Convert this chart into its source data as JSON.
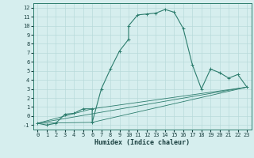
{
  "xlabel": "Humidex (Indice chaleur)",
  "ylabel": "",
  "bg_color": "#d6eeee",
  "line_color": "#2d7d6e",
  "grid_color": "#b8dada",
  "xlim": [
    -0.5,
    23.5
  ],
  "ylim": [
    -1.5,
    12.5
  ],
  "xticks": [
    0,
    1,
    2,
    3,
    4,
    5,
    6,
    7,
    8,
    9,
    10,
    11,
    12,
    13,
    14,
    15,
    16,
    17,
    18,
    19,
    20,
    21,
    22,
    23
  ],
  "yticks": [
    -1,
    0,
    1,
    2,
    3,
    4,
    5,
    6,
    7,
    8,
    9,
    10,
    11,
    12
  ],
  "series": [
    [
      0,
      -0.8
    ],
    [
      1,
      -1.0
    ],
    [
      2,
      -0.8
    ],
    [
      3,
      0.2
    ],
    [
      4,
      0.3
    ],
    [
      5,
      0.8
    ],
    [
      6,
      0.8
    ],
    [
      6,
      -0.7
    ],
    [
      7,
      3.0
    ],
    [
      8,
      5.2
    ],
    [
      9,
      7.2
    ],
    [
      10,
      8.5
    ],
    [
      10,
      10.0
    ],
    [
      11,
      11.2
    ],
    [
      12,
      11.3
    ],
    [
      13,
      11.4
    ],
    [
      14,
      11.8
    ],
    [
      15,
      11.5
    ],
    [
      16,
      9.7
    ],
    [
      17,
      5.7
    ],
    [
      18,
      3.0
    ],
    [
      19,
      5.2
    ],
    [
      20,
      4.8
    ],
    [
      21,
      4.2
    ],
    [
      22,
      4.6
    ],
    [
      23,
      3.2
    ]
  ],
  "series2": [
    [
      0,
      -0.8
    ],
    [
      23,
      3.2
    ]
  ],
  "series3": [
    [
      0,
      -0.8
    ],
    [
      6,
      0.8
    ],
    [
      23,
      3.2
    ]
  ],
  "series4": [
    [
      0,
      -0.8
    ],
    [
      6,
      -0.7
    ],
    [
      23,
      3.2
    ]
  ],
  "tick_fontsize": 5.0,
  "xlabel_fontsize": 6.0,
  "linewidth": 0.8,
  "markersize": 2.5
}
